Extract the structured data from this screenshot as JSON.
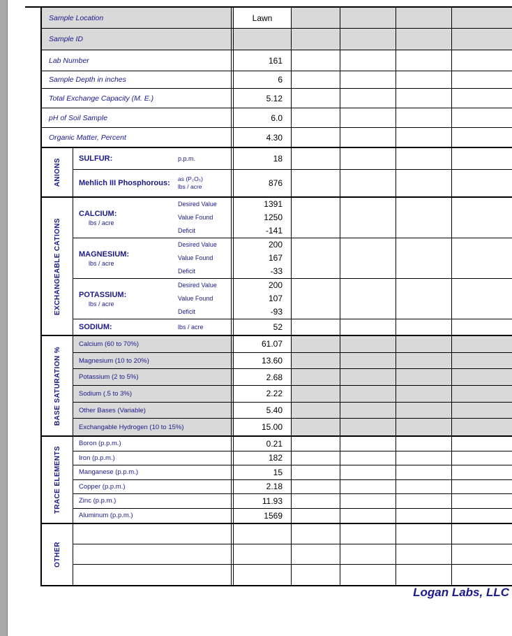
{
  "top_rows": [
    {
      "label": "Sample Location",
      "value": "Lawn"
    },
    {
      "label": "Sample ID",
      "value": ""
    },
    {
      "label": "Lab Number",
      "value": "161"
    },
    {
      "label": "Sample Depth in inches",
      "value": "6"
    },
    {
      "label": "Total Exchange Capacity (M. E.)",
      "value": "5.12"
    },
    {
      "label": "pH of Soil Sample",
      "value": "6.0"
    },
    {
      "label": "Organic Matter, Percent",
      "value": "4.30"
    }
  ],
  "anions": {
    "section_label": "ANIONS",
    "sulfur": {
      "label": "SULFUR:",
      "unit": "p.p.m.",
      "value": "18"
    },
    "phosphorous": {
      "label": "Mehlich III Phosphorous:",
      "unit_line1": "as (P₂O₅)",
      "unit_line2": "lbs / acre",
      "value": "876"
    }
  },
  "cations": {
    "section_label": "EXCHANGEABLE CATIONS",
    "sub_labels": [
      "Desired Value",
      "Value Found",
      "Deficit"
    ],
    "rows": [
      {
        "label": "CALCIUM:",
        "unit": "lbs / acre",
        "values": [
          "1391",
          "1250",
          "-141"
        ]
      },
      {
        "label": "MAGNESIUM:",
        "unit": "lbs / acre",
        "values": [
          "200",
          "167",
          "-33"
        ]
      },
      {
        "label": "POTASSIUM:",
        "unit": "lbs / acre",
        "values": [
          "200",
          "107",
          "-93"
        ]
      }
    ],
    "sodium": {
      "label": "SODIUM:",
      "unit": "lbs / acre",
      "value": "52"
    }
  },
  "base_saturation": {
    "section_label": "BASE SATURATION %",
    "rows": [
      {
        "label": "Calcium (60 to 70%)",
        "value": "61.07"
      },
      {
        "label": "Magnesium (10 to 20%)",
        "value": "13.60"
      },
      {
        "label": "Potassium (2 to 5%)",
        "value": "2.68"
      },
      {
        "label": "Sodium (.5 to 3%)",
        "value": "2.22"
      },
      {
        "label": "Other Bases (Variable)",
        "value": "5.40"
      },
      {
        "label": "Exchangable Hydrogen (10 to 15%)",
        "value": "15.00"
      }
    ]
  },
  "trace_elements": {
    "section_label": "TRACE ELEMENTS",
    "rows": [
      {
        "label": "Boron (p.p.m.)",
        "value": "0.21"
      },
      {
        "label": "Iron (p.p.m.)",
        "value": "182"
      },
      {
        "label": "Manganese (p.p.m.)",
        "value": "15"
      },
      {
        "label": "Copper (p.p.m.)",
        "value": "2.18"
      },
      {
        "label": "Zinc (p.p.m.)",
        "value": "11.93"
      },
      {
        "label": "Aluminum (p.p.m.)",
        "value": "1569"
      }
    ]
  },
  "other": {
    "section_label": "OTHER"
  },
  "footer": {
    "company": "Logan Labs, LLC"
  },
  "colors": {
    "label_navy": "#1a1a8c",
    "shading_gray": "#d9d9d9"
  }
}
